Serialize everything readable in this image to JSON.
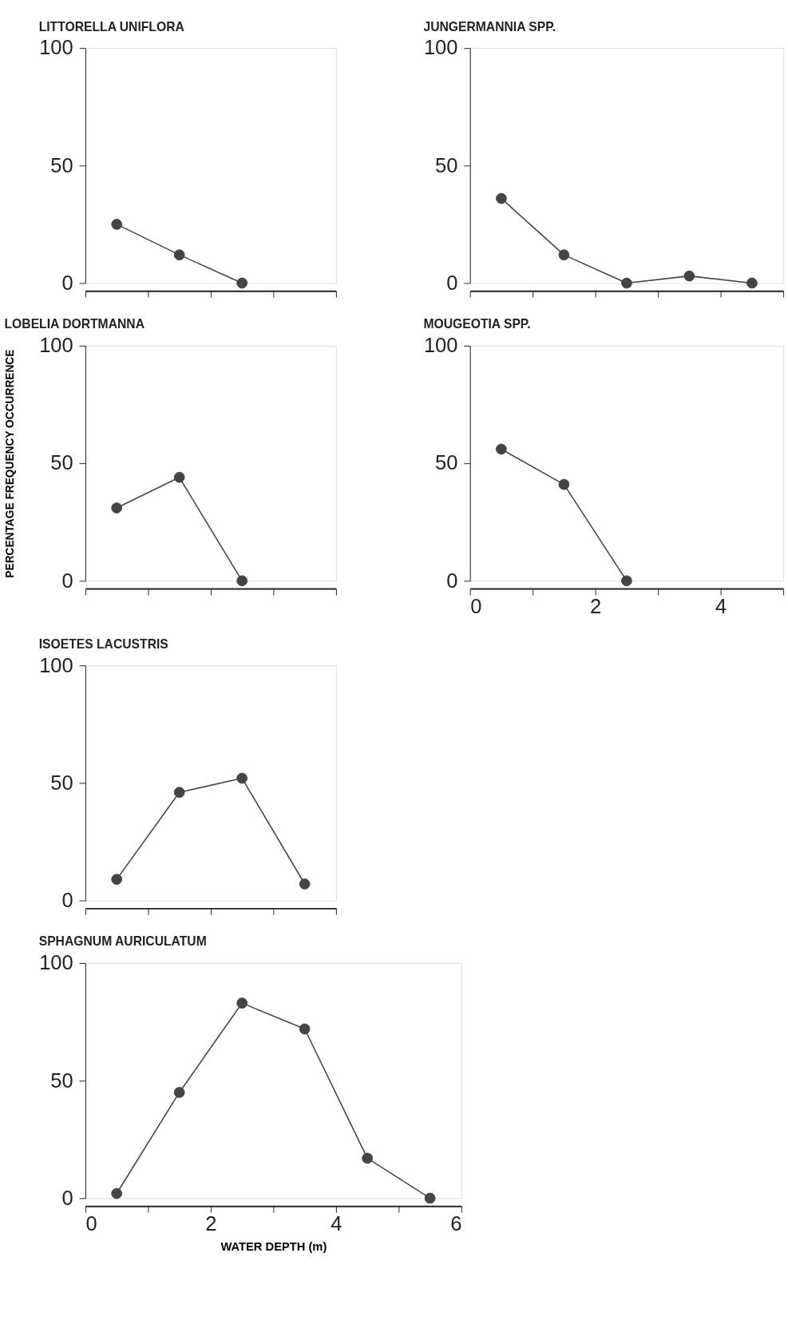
{
  "chart_data": [
    {
      "type": "line",
      "title": "LITTORELLA  UNIFLORA",
      "categories": [
        null,
        null,
        null,
        null
      ],
      "series": [
        {
          "color": "#444444",
          "values": [
            25,
            12,
            0,
            null
          ]
        }
      ],
      "ylim": [
        0,
        100
      ],
      "yticks": [
        0,
        50,
        100
      ],
      "marker": "circle",
      "grid": false,
      "tick_labels": "y"
    },
    {
      "type": "line",
      "title": "JUNGERMANNIA SPP.",
      "categories": [
        null,
        null,
        null,
        null,
        null
      ],
      "series": [
        {
          "color": "#444444",
          "values": [
            36,
            12,
            0,
            3,
            0
          ]
        }
      ],
      "ylim": [
        0,
        100
      ],
      "yticks": [
        0,
        50,
        100
      ],
      "marker": "circle",
      "grid": false,
      "tick_labels": "y"
    },
    {
      "type": "line",
      "title": "LOBELIA  DORTMANNA",
      "ylabel": "PERCENTAGE  FREQUENCY  OCCURRENCE",
      "categories": [
        null,
        null,
        null,
        null
      ],
      "series": [
        {
          "color": "#444444",
          "values": [
            31,
            44,
            0,
            null
          ]
        }
      ],
      "ylim": [
        0,
        100
      ],
      "yticks": [
        0,
        50,
        100
      ],
      "marker": "circle",
      "grid": false,
      "tick_labels": "y"
    },
    {
      "type": "line",
      "title": "MOUGEOTIA  SPP.",
      "x": [
        0.5,
        1.5,
        2.5
      ],
      "series": [
        {
          "color": "#444444",
          "values": [
            56,
            41,
            0
          ]
        }
      ],
      "xlim": [
        0,
        5
      ],
      "xticks": [
        0,
        {
          "value": 1,
          "label": null
        },
        2,
        {
          "value": 3,
          "label": null
        },
        4,
        {
          "value": 5,
          "label": null
        }
      ],
      "ylim": [
        0,
        100
      ],
      "yticks": [
        0,
        50,
        100
      ],
      "marker": "circle",
      "grid": false
    },
    {
      "type": "line",
      "title": "ISOETES  LACUSTRIS",
      "categories": [
        null,
        null,
        null,
        null
      ],
      "series": [
        {
          "color": "#444444",
          "values": [
            9,
            46,
            52,
            7
          ]
        }
      ],
      "ylim": [
        0,
        100
      ],
      "yticks": [
        0,
        50,
        100
      ],
      "marker": "circle",
      "grid": false,
      "tick_labels": "y"
    },
    {
      "type": "line",
      "title": "SPHAGNUM  AURICULATUM",
      "xlabel": "WATER  DEPTH  (m)",
      "x": [
        0.5,
        1.5,
        2.5,
        3.5,
        4.5,
        5.5
      ],
      "series": [
        {
          "color": "#444444",
          "values": [
            2,
            45,
            83,
            72,
            17,
            0
          ]
        }
      ],
      "xlim": [
        0,
        6
      ],
      "xticks": [
        0,
        {
          "value": 1,
          "label": null
        },
        2,
        {
          "value": 3,
          "label": null
        },
        4,
        {
          "value": 5,
          "label": null
        },
        6
      ],
      "ylim": [
        0,
        100
      ],
      "yticks": [
        0,
        50,
        100
      ],
      "marker": "circle",
      "grid": false
    }
  ]
}
